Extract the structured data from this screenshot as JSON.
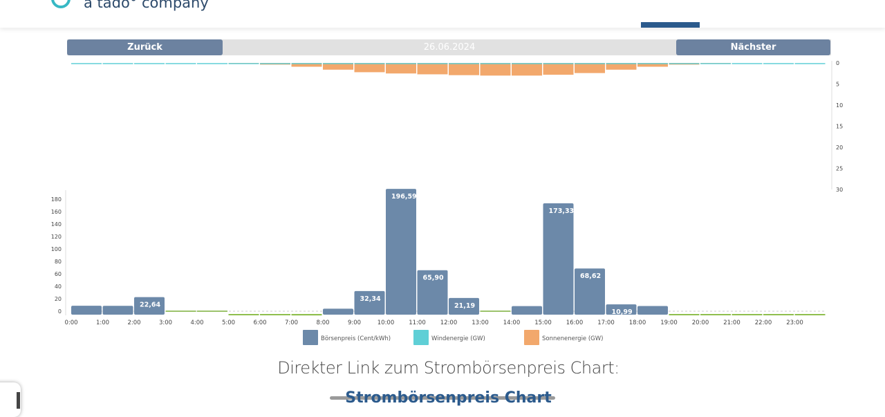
{
  "header": {
    "brand_text": "a tado° company"
  },
  "nav": {
    "back_label": "Zurück",
    "date": "26.06.2024",
    "next_label": "Nächster"
  },
  "chart_data": {
    "type": "bar",
    "x_tick_labels": [
      "0:00",
      "1:00",
      "2:00",
      "3:00",
      "4:00",
      "5:00",
      "6:00",
      "7:00",
      "8:00",
      "9:00",
      "10:00",
      "11:00",
      "12:00",
      "13:00",
      "14:00",
      "15:00",
      "16:00",
      "17:00",
      "18:00",
      "19:00",
      "20:00",
      "21:00",
      "22:00",
      "23:00"
    ],
    "price_axis": {
      "ticks": [
        "0",
        "20",
        "40",
        "60",
        "80",
        "100",
        "120",
        "140",
        "160",
        "180"
      ],
      "range": [
        -5,
        200
      ]
    },
    "energy_axis": {
      "ticks": [
        "0",
        "5",
        "10",
        "15",
        "20",
        "25",
        "30"
      ],
      "range": [
        0,
        30
      ],
      "inverted": true
    },
    "series": [
      {
        "name": "Börsenpreis (Cent/kWh)",
        "color": "#6c89a9",
        "values": [
          8.7,
          8.6,
          22.64,
          0.2,
          0.1,
          -0.2,
          -1.0,
          -1.2,
          4.0,
          32.34,
          196.59,
          65.9,
          21.19,
          0.3,
          8.2,
          173.33,
          68.62,
          10.99,
          8.4,
          -0.3,
          -0.5,
          -0.8,
          -0.9,
          -1.1
        ],
        "labels": [
          "",
          "",
          "22,64",
          "",
          "",
          "",
          "",
          "",
          "",
          "32,34",
          "196,59",
          "65,90",
          "21,19",
          "",
          "",
          "173,33",
          "68,62",
          "10,99",
          "",
          "",
          "",
          "",
          "",
          ""
        ]
      },
      {
        "name": "Windenergie (GW)",
        "color": "#5fcfd6",
        "values": [
          0.2,
          0.2,
          0.2,
          0.2,
          0.2,
          0.2,
          0.2,
          0.2,
          0.2,
          0.2,
          0.2,
          0.2,
          0.2,
          0.2,
          0.2,
          0.2,
          0.2,
          0.2,
          0.2,
          0.2,
          0.2,
          0.2,
          0.2,
          0.2
        ]
      },
      {
        "name": "Sonnenenergie (GW)",
        "color": "#f2a86c",
        "values": [
          0,
          0,
          0,
          0,
          0,
          0.1,
          0.4,
          0.9,
          1.6,
          2.2,
          2.5,
          2.7,
          2.9,
          3.0,
          3.0,
          2.8,
          2.4,
          1.6,
          0.9,
          0.4,
          0.1,
          0,
          0,
          0
        ]
      }
    ]
  },
  "footer": {
    "heading": "Direkter Link zum Strombörsenpreis Chart:",
    "link": "Strombörsenpreis Chart"
  }
}
